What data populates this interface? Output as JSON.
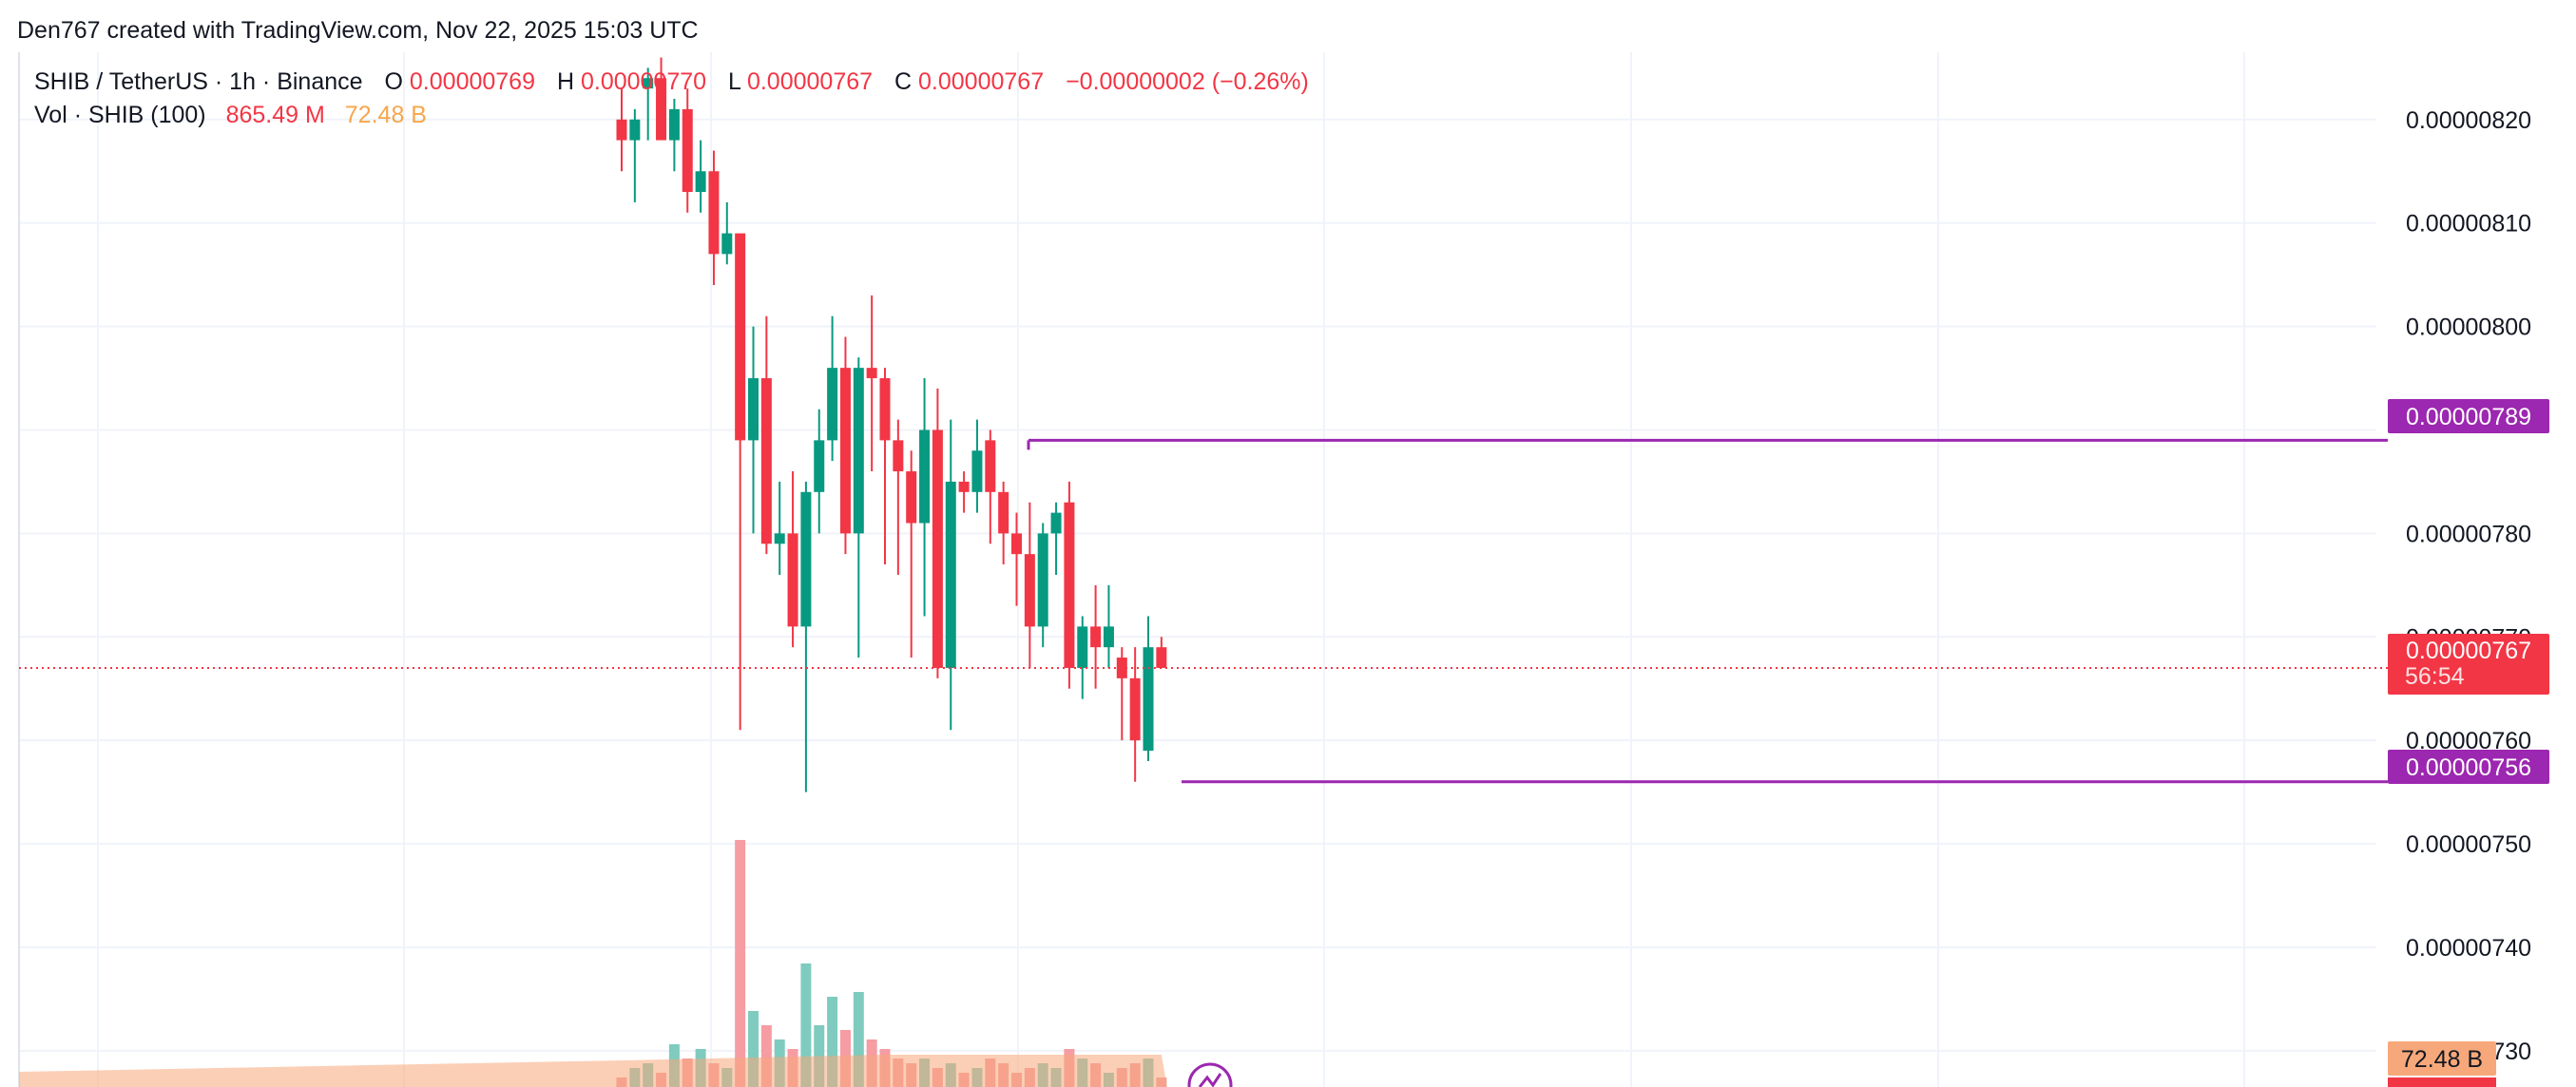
{
  "watermark": "Den767 created with TradingView.com, Nov 22, 2025 15:03 UTC",
  "legend": {
    "symbol": "SHIB / TetherUS · 1h · Binance",
    "open_label": "O",
    "open": "0.00000769",
    "high_label": "H",
    "high": "0.00000770",
    "low_label": "L",
    "low": "0.00000767",
    "close_label": "C",
    "close": "0.00000767",
    "change": "−0.00000002 (−0.26%)",
    "vol_label": "Vol · SHIB (100)",
    "vol_value": "865.49 M",
    "vol_ma": "72.48 B"
  },
  "price_axis": {
    "ticks": [
      "0.00000820",
      "0.00000810",
      "0.00000800",
      "0.00000780",
      "0.00000770",
      "0.00000760",
      "0.00000750",
      "0.00000740",
      "0.00000730"
    ]
  },
  "tags": {
    "upper_line": "0.00000789",
    "last_price": "0.00000767",
    "countdown": "56:54",
    "lower_line": "0.00000756",
    "volume_ma": "72.48 B"
  },
  "colors": {
    "up": "#089981",
    "down": "#f23645",
    "vol_up": "#7fcbbf",
    "vol_down": "#f69ca3",
    "vol_ma_fill": "#f7a87a",
    "horizontal_lines": "#9c27b0",
    "grid": "#f0f3fa"
  },
  "chart_data": {
    "type": "candlestick",
    "title": "SHIB / TetherUS · 1h · Binance",
    "timeframe": "1h",
    "ylim": [
      7.265e-06,
      8.265e-06
    ],
    "y_unit": "USDT",
    "grid": true,
    "last_price": 7.67e-06,
    "horizontal_lines": [
      7.89e-06,
      7.56e-06
    ],
    "volume_ma_last": "72.48 B",
    "candles": [
      {
        "o": 8.2e-06,
        "h": 8.23e-06,
        "l": 8.15e-06,
        "c": 8.18e-06,
        "v": 10
      },
      {
        "o": 8.18e-06,
        "h": 8.21e-06,
        "l": 8.12e-06,
        "c": 8.2e-06,
        "v": 20
      },
      {
        "o": 8.23e-06,
        "h": 8.25e-06,
        "l": 8.18e-06,
        "c": 8.24e-06,
        "v": 25
      },
      {
        "o": 8.24e-06,
        "h": 8.26e-06,
        "l": 8.19e-06,
        "c": 8.18e-06,
        "v": 15
      },
      {
        "o": 8.18e-06,
        "h": 8.22e-06,
        "l": 8.15e-06,
        "c": 8.21e-06,
        "v": 45
      },
      {
        "o": 8.21e-06,
        "h": 8.23e-06,
        "l": 8.11e-06,
        "c": 8.13e-06,
        "v": 30
      },
      {
        "o": 8.13e-06,
        "h": 8.18e-06,
        "l": 8.11e-06,
        "c": 8.15e-06,
        "v": 40
      },
      {
        "o": 8.15e-06,
        "h": 8.17e-06,
        "l": 8.04e-06,
        "c": 8.07e-06,
        "v": 25
      },
      {
        "o": 8.07e-06,
        "h": 8.12e-06,
        "l": 8.06e-06,
        "c": 8.09e-06,
        "v": 20
      },
      {
        "o": 8.09e-06,
        "h": 8.08e-06,
        "l": 7.61e-06,
        "c": 7.89e-06,
        "v": 260
      },
      {
        "o": 7.89e-06,
        "h": 8e-06,
        "l": 7.8e-06,
        "c": 7.95e-06,
        "v": 80
      },
      {
        "o": 7.95e-06,
        "h": 8.01e-06,
        "l": 7.78e-06,
        "c": 7.79e-06,
        "v": 65
      },
      {
        "o": 7.79e-06,
        "h": 7.85e-06,
        "l": 7.76e-06,
        "c": 7.8e-06,
        "v": 50
      },
      {
        "o": 7.8e-06,
        "h": 7.86e-06,
        "l": 7.69e-06,
        "c": 7.71e-06,
        "v": 40
      },
      {
        "o": 7.71e-06,
        "h": 7.85e-06,
        "l": 7.55e-06,
        "c": 7.84e-06,
        "v": 130
      },
      {
        "o": 7.84e-06,
        "h": 7.92e-06,
        "l": 7.8e-06,
        "c": 7.89e-06,
        "v": 65
      },
      {
        "o": 7.89e-06,
        "h": 8.01e-06,
        "l": 7.87e-06,
        "c": 7.96e-06,
        "v": 95
      },
      {
        "o": 7.96e-06,
        "h": 7.99e-06,
        "l": 7.78e-06,
        "c": 7.8e-06,
        "v": 60
      },
      {
        "o": 7.8e-06,
        "h": 7.97e-06,
        "l": 7.68e-06,
        "c": 7.96e-06,
        "v": 100
      },
      {
        "o": 7.96e-06,
        "h": 8.03e-06,
        "l": 7.86e-06,
        "c": 7.95e-06,
        "v": 50
      },
      {
        "o": 7.95e-06,
        "h": 7.96e-06,
        "l": 7.77e-06,
        "c": 7.89e-06,
        "v": 40
      },
      {
        "o": 7.89e-06,
        "h": 7.91e-06,
        "l": 7.76e-06,
        "c": 7.86e-06,
        "v": 30
      },
      {
        "o": 7.86e-06,
        "h": 7.88e-06,
        "l": 7.68e-06,
        "c": 7.81e-06,
        "v": 25
      },
      {
        "o": 7.81e-06,
        "h": 7.95e-06,
        "l": 7.72e-06,
        "c": 7.9e-06,
        "v": 30
      },
      {
        "o": 7.9e-06,
        "h": 7.94e-06,
        "l": 7.66e-06,
        "c": 7.67e-06,
        "v": 20
      },
      {
        "o": 7.67e-06,
        "h": 7.91e-06,
        "l": 7.61e-06,
        "c": 7.85e-06,
        "v": 25
      },
      {
        "o": 7.85e-06,
        "h": 7.86e-06,
        "l": 7.82e-06,
        "c": 7.84e-06,
        "v": 15
      },
      {
        "o": 7.84e-06,
        "h": 7.91e-06,
        "l": 7.82e-06,
        "c": 7.88e-06,
        "v": 20
      },
      {
        "o": 7.89e-06,
        "h": 7.9e-06,
        "l": 7.79e-06,
        "c": 7.84e-06,
        "v": 30
      },
      {
        "o": 7.84e-06,
        "h": 7.85e-06,
        "l": 7.77e-06,
        "c": 7.8e-06,
        "v": 25
      },
      {
        "o": 7.8e-06,
        "h": 7.82e-06,
        "l": 7.73e-06,
        "c": 7.78e-06,
        "v": 15
      },
      {
        "o": 7.78e-06,
        "h": 7.83e-06,
        "l": 7.67e-06,
        "c": 7.71e-06,
        "v": 20
      },
      {
        "o": 7.71e-06,
        "h": 7.81e-06,
        "l": 7.69e-06,
        "c": 7.8e-06,
        "v": 25
      },
      {
        "o": 7.8e-06,
        "h": 7.83e-06,
        "l": 7.76e-06,
        "c": 7.82e-06,
        "v": 20
      },
      {
        "o": 7.83e-06,
        "h": 7.85e-06,
        "l": 7.65e-06,
        "c": 7.67e-06,
        "v": 40
      },
      {
        "o": 7.67e-06,
        "h": 7.72e-06,
        "l": 7.64e-06,
        "c": 7.71e-06,
        "v": 30
      },
      {
        "o": 7.71e-06,
        "h": 7.75e-06,
        "l": 7.65e-06,
        "c": 7.69e-06,
        "v": 25
      },
      {
        "o": 7.69e-06,
        "h": 7.75e-06,
        "l": 7.67e-06,
        "c": 7.71e-06,
        "v": 15
      },
      {
        "o": 7.68e-06,
        "h": 7.69e-06,
        "l": 7.6e-06,
        "c": 7.66e-06,
        "v": 20
      },
      {
        "o": 7.66e-06,
        "h": 7.69e-06,
        "l": 7.56e-06,
        "c": 7.6e-06,
        "v": 25
      },
      {
        "o": 7.59e-06,
        "h": 7.72e-06,
        "l": 7.58e-06,
        "c": 7.69e-06,
        "v": 30
      },
      {
        "o": 7.69e-06,
        "h": 7.7e-06,
        "l": 7.67e-06,
        "c": 7.67e-06,
        "v": 10
      }
    ]
  }
}
